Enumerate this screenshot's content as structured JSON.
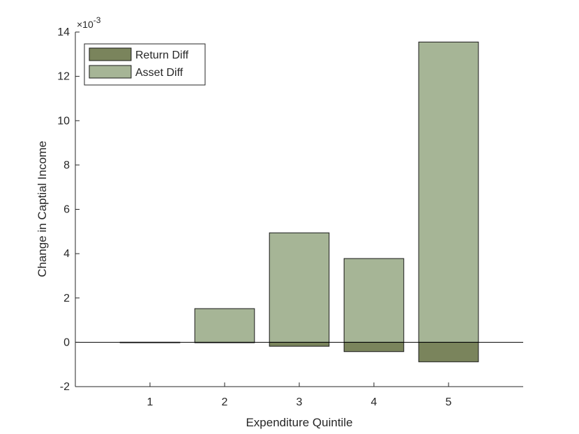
{
  "chart_data": {
    "type": "bar",
    "stacked": true,
    "categories": [
      "1",
      "2",
      "3",
      "4",
      "5"
    ],
    "series": [
      {
        "name": "Return Diff",
        "values": [
          0.0,
          -2e-05,
          -0.00018,
          -0.00042,
          -0.00088
        ],
        "color": "#7a845c"
      },
      {
        "name": "Asset Diff",
        "values": [
          0.0,
          0.00152,
          0.00494,
          0.00378,
          0.01355
        ],
        "color": "#a6b596"
      }
    ],
    "xlabel": "Expenditure Quintile",
    "ylabel": "Change in Captial Income",
    "ylim": [
      -0.002,
      0.014
    ],
    "yticks": [
      -2,
      0,
      2,
      4,
      6,
      8,
      10,
      12,
      14
    ],
    "ytick_labels": [
      "-2",
      "0",
      "2",
      "4",
      "6",
      "8",
      "10",
      "12",
      "14"
    ],
    "exponent_label": {
      "base": "×10",
      "power": "-3"
    },
    "legend_position": "top-left",
    "grid": false
  }
}
